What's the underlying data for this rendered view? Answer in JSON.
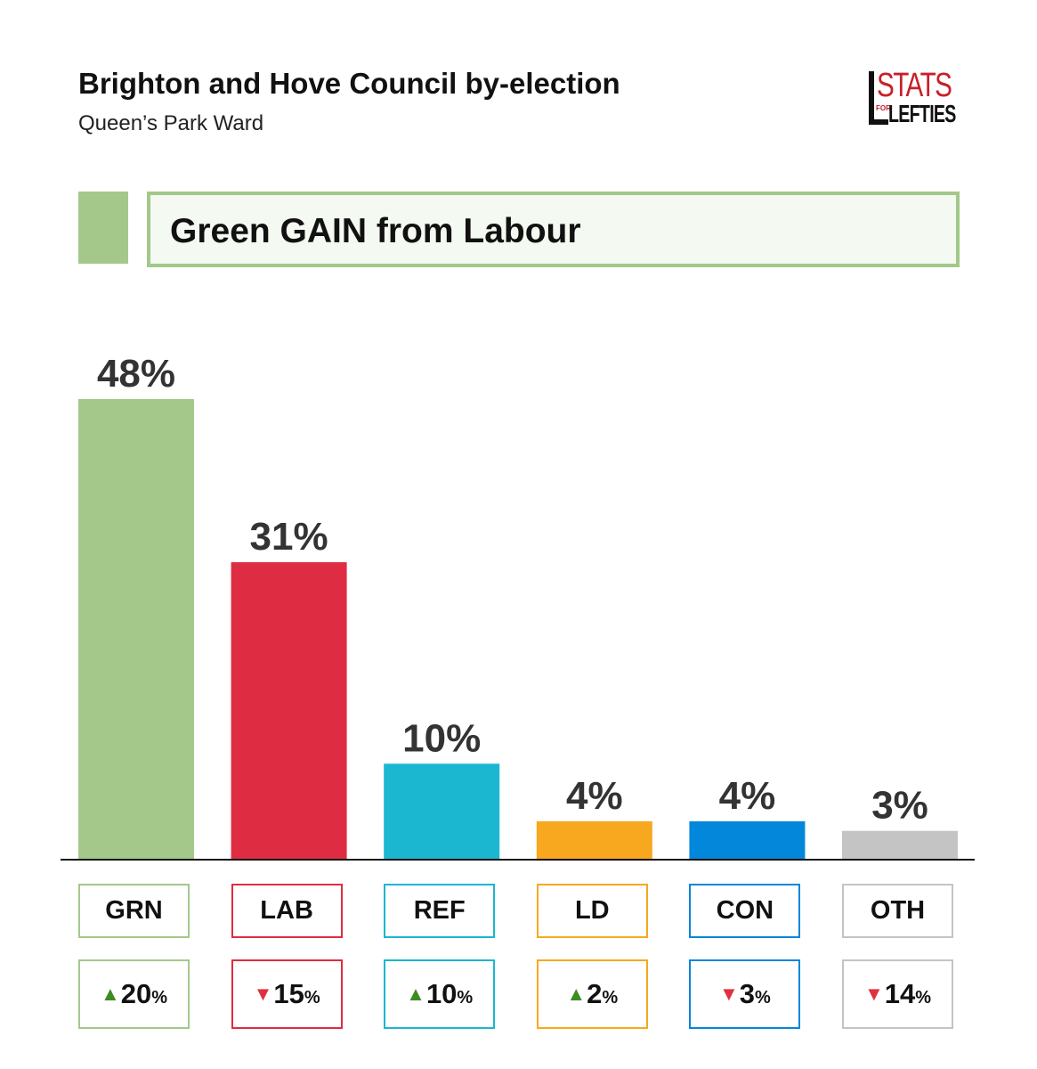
{
  "header": {
    "title": "Brighton and Hove Council by-election",
    "subtitle": "Queen’s Park Ward"
  },
  "logo": {
    "line1": "STATS",
    "line2": "FOR",
    "line3": "LEFTIES"
  },
  "banner": {
    "text": "Green GAIN from Labour",
    "color": "#a3c88a",
    "fill": "#f4f9f1"
  },
  "chart_data": {
    "type": "bar",
    "title": "Brighton and Hove Council by-election",
    "subtitle": "Queen’s Park Ward",
    "categories": [
      "GRN",
      "LAB",
      "REF",
      "LD",
      "CON",
      "OTH"
    ],
    "values": [
      48,
      31,
      10,
      4,
      4,
      3
    ],
    "value_labels": [
      "48%",
      "31%",
      "10%",
      "4%",
      "4%",
      "3%"
    ],
    "colors": [
      "#a3c88a",
      "#de2d42",
      "#1bb7d1",
      "#f7a81e",
      "#0287db",
      "#c4c4c4"
    ],
    "changes": [
      {
        "direction": "up",
        "value": "20",
        "unit": "%"
      },
      {
        "direction": "down",
        "value": "15",
        "unit": "%"
      },
      {
        "direction": "up",
        "value": "10",
        "unit": "%"
      },
      {
        "direction": "up",
        "value": "2",
        "unit": "%"
      },
      {
        "direction": "down",
        "value": "3",
        "unit": "%"
      },
      {
        "direction": "down",
        "value": "14",
        "unit": "%"
      }
    ],
    "xlabel": "",
    "ylabel": "",
    "ylim": [
      0,
      48
    ],
    "grid": false
  }
}
